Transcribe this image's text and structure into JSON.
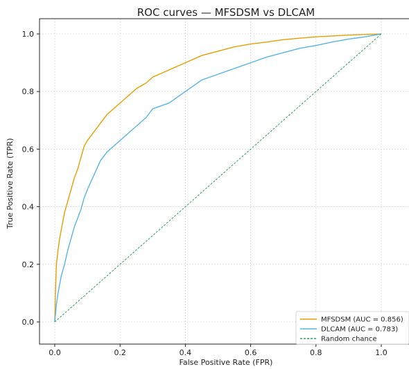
{
  "chart_data": {
    "type": "line",
    "title": "ROC curves — MFSDSM vs DLCAM",
    "xlabel": "False Positive Rate (FPR)",
    "ylabel": "True Positive Rate (TPR)",
    "xlim": [
      0,
      1
    ],
    "ylim": [
      0,
      1
    ],
    "xticks": [
      "0.0",
      "0.2",
      "0.4",
      "0.6",
      "0.8",
      "1.0"
    ],
    "yticks": [
      "0.0",
      "0.2",
      "0.4",
      "0.6",
      "0.8",
      "1.0"
    ],
    "grid": true,
    "legend_position": "lower-right",
    "series": [
      {
        "name": "MFSDSM (AUC = 0.856)",
        "color": "#e69f00",
        "style": "solid",
        "x": [
          0,
          0.002,
          0.005,
          0.01,
          0.015,
          0.02,
          0.03,
          0.04,
          0.05,
          0.06,
          0.07,
          0.08,
          0.09,
          0.1,
          0.12,
          0.14,
          0.16,
          0.18,
          0.2,
          0.22,
          0.25,
          0.28,
          0.3,
          0.35,
          0.4,
          0.45,
          0.5,
          0.55,
          0.6,
          0.65,
          0.7,
          0.75,
          0.8,
          0.85,
          0.9,
          0.95,
          1.0
        ],
        "y": [
          0,
          0.1,
          0.2,
          0.25,
          0.29,
          0.32,
          0.38,
          0.42,
          0.46,
          0.5,
          0.53,
          0.57,
          0.61,
          0.63,
          0.66,
          0.69,
          0.72,
          0.74,
          0.76,
          0.78,
          0.81,
          0.83,
          0.85,
          0.875,
          0.9,
          0.925,
          0.94,
          0.955,
          0.965,
          0.972,
          0.98,
          0.985,
          0.99,
          0.993,
          0.996,
          0.998,
          1.0
        ]
      },
      {
        "name": "DLCAM (AUC = 0.783)",
        "color": "#56b4e9",
        "style": "solid",
        "x": [
          0,
          0.005,
          0.01,
          0.015,
          0.02,
          0.03,
          0.04,
          0.05,
          0.06,
          0.07,
          0.08,
          0.09,
          0.1,
          0.12,
          0.14,
          0.16,
          0.18,
          0.2,
          0.22,
          0.25,
          0.28,
          0.3,
          0.35,
          0.4,
          0.45,
          0.5,
          0.55,
          0.6,
          0.65,
          0.7,
          0.75,
          0.8,
          0.85,
          0.9,
          0.95,
          1.0
        ],
        "y": [
          0,
          0.06,
          0.1,
          0.13,
          0.16,
          0.2,
          0.25,
          0.29,
          0.33,
          0.36,
          0.39,
          0.43,
          0.46,
          0.51,
          0.56,
          0.59,
          0.61,
          0.63,
          0.65,
          0.68,
          0.71,
          0.74,
          0.76,
          0.8,
          0.84,
          0.86,
          0.88,
          0.9,
          0.92,
          0.935,
          0.95,
          0.96,
          0.972,
          0.982,
          0.99,
          1.0
        ]
      },
      {
        "name": "Random chance",
        "color": "#2ca25f",
        "style": "dashed",
        "x": [
          0,
          1
        ],
        "y": [
          0,
          1
        ]
      }
    ]
  }
}
